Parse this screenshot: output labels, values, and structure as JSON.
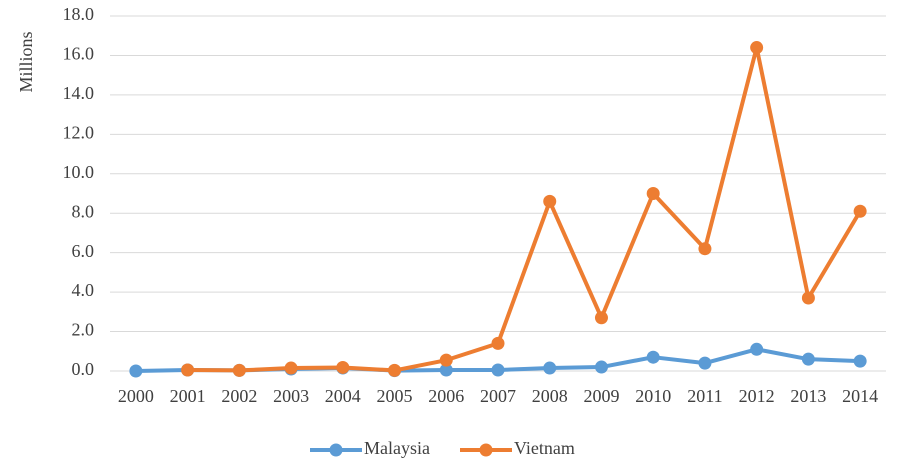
{
  "chart_data": {
    "type": "line",
    "y_label": "Millions",
    "categories": [
      "2000",
      "2001",
      "2002",
      "2003",
      "2004",
      "2005",
      "2006",
      "2007",
      "2008",
      "2009",
      "2010",
      "2011",
      "2012",
      "2013",
      "2014"
    ],
    "series": [
      {
        "name": "Malaysia",
        "color": "#5b9bd5",
        "values": [
          0.0,
          0.05,
          0.03,
          0.1,
          0.15,
          0.02,
          0.05,
          0.05,
          0.15,
          0.2,
          0.7,
          0.4,
          1.1,
          0.6,
          0.5
        ]
      },
      {
        "name": "Vietnam",
        "color": "#ed7d31",
        "values": [
          null,
          0.05,
          0.03,
          0.15,
          0.18,
          0.03,
          0.55,
          1.4,
          8.6,
          2.7,
          9.0,
          6.2,
          16.4,
          3.7,
          8.1
        ]
      }
    ],
    "ylim": [
      0,
      18
    ],
    "yticks": [
      {
        "value": 0,
        "label": "0.0"
      },
      {
        "value": 2,
        "label": "2.0"
      },
      {
        "value": 4,
        "label": "4.0"
      },
      {
        "value": 6,
        "label": "6.0"
      },
      {
        "value": 8,
        "label": "8.0"
      },
      {
        "value": 10,
        "label": "10.0"
      },
      {
        "value": 12,
        "label": "12.0"
      },
      {
        "value": 14,
        "label": "14.0"
      },
      {
        "value": 16,
        "label": "16.0"
      },
      {
        "value": 18,
        "label": "18.0"
      }
    ],
    "grid": true,
    "legend": "bottom"
  }
}
